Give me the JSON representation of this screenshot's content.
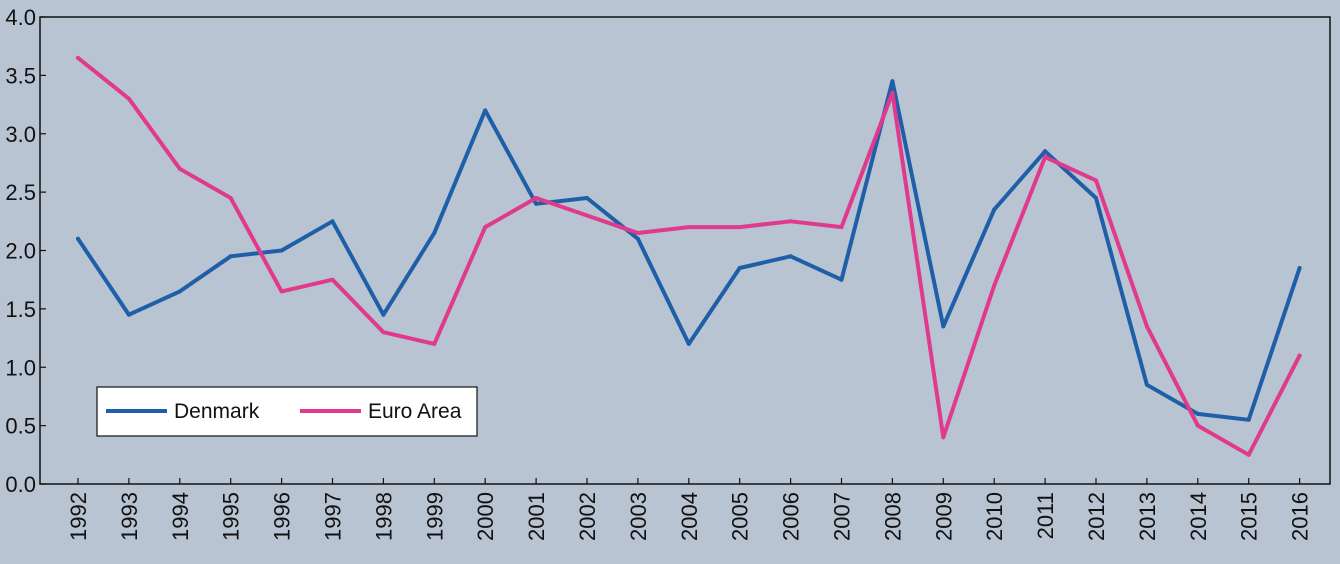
{
  "chart_data": {
    "type": "line",
    "title": "",
    "xlabel": "",
    "ylabel": "",
    "x": [
      "1992",
      "1993",
      "1994",
      "1995",
      "1996",
      "1997",
      "1998",
      "1999",
      "2000",
      "2001",
      "2002",
      "2003",
      "2004",
      "2005",
      "2006",
      "2007",
      "2008",
      "2009",
      "2010",
      "2011",
      "2012",
      "2013",
      "2014",
      "2015",
      "2016"
    ],
    "yticks": [
      "0.0",
      "0.5",
      "1.0",
      "1.5",
      "2.0",
      "2.5",
      "3.0",
      "3.5",
      "4.0"
    ],
    "ylim": [
      0,
      4
    ],
    "grid": false,
    "legend_position": "bottom-left",
    "series": [
      {
        "name": "Denmark",
        "color": "#1f5fa8",
        "values": [
          2.1,
          1.45,
          1.65,
          1.95,
          2.0,
          2.25,
          1.45,
          2.15,
          3.2,
          2.4,
          2.45,
          2.1,
          1.2,
          1.85,
          1.95,
          1.75,
          3.45,
          1.35,
          2.35,
          2.85,
          2.45,
          0.85,
          0.6,
          0.55,
          1.85
        ]
      },
      {
        "name": "Euro Area",
        "color": "#e03a8c",
        "values": [
          3.65,
          3.3,
          2.7,
          2.45,
          1.65,
          1.75,
          1.3,
          1.2,
          2.2,
          2.45,
          2.3,
          2.15,
          2.2,
          2.2,
          2.25,
          2.2,
          3.35,
          0.4,
          1.7,
          2.8,
          2.6,
          1.35,
          0.5,
          0.25,
          1.1
        ]
      }
    ]
  }
}
